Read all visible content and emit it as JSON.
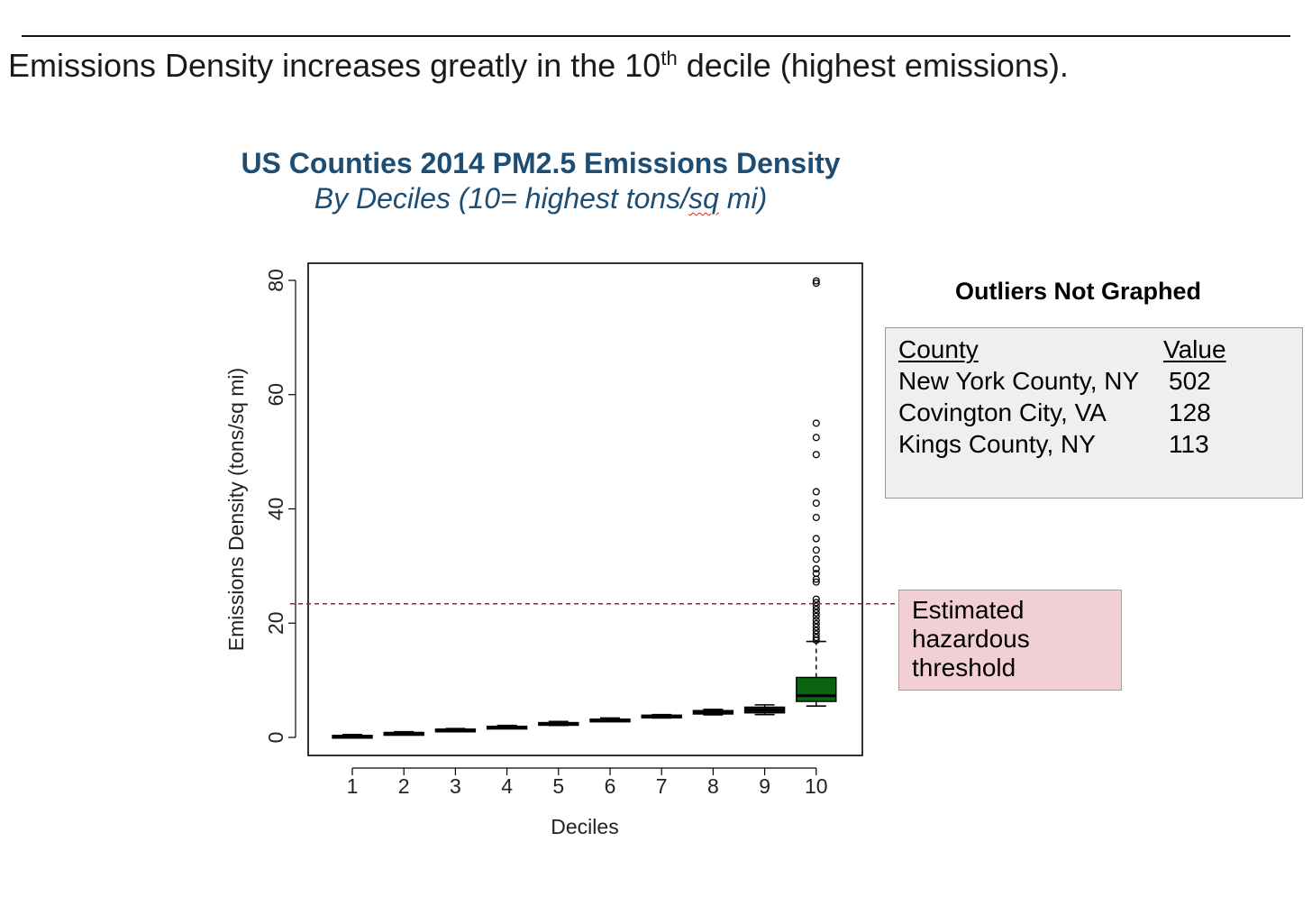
{
  "headline": {
    "text_before": "Emissions Density increases greatly in the 10",
    "superscript": "th",
    "text_after": " decile (highest emissions)."
  },
  "chart_data": {
    "type": "box",
    "title": "US Counties 2014 PM2.5 Emissions Density",
    "subtitle_prefix": "By Deciles (10= highest tons/",
    "subtitle_marked": "sq",
    "subtitle_suffix": " mi)",
    "xlabel": "Deciles",
    "ylabel": "Emissions Density (tons/sq mi)",
    "categories": [
      "1",
      "2",
      "3",
      "4",
      "5",
      "6",
      "7",
      "8",
      "9",
      "10"
    ],
    "yticks": [
      0,
      20,
      40,
      60,
      80
    ],
    "ylim": [
      -3,
      80
    ],
    "boxes": [
      {
        "min": 0.0,
        "q1": 0.05,
        "median": 0.2,
        "q3": 0.35,
        "max": 0.5
      },
      {
        "min": 0.5,
        "q1": 0.6,
        "median": 0.75,
        "q3": 0.85,
        "max": 1.0
      },
      {
        "min": 1.0,
        "q1": 1.15,
        "median": 1.3,
        "q3": 1.45,
        "max": 1.55
      },
      {
        "min": 1.55,
        "q1": 1.65,
        "median": 1.8,
        "q3": 1.95,
        "max": 2.1
      },
      {
        "min": 2.1,
        "q1": 2.2,
        "median": 2.4,
        "q3": 2.6,
        "max": 2.8
      },
      {
        "min": 2.8,
        "q1": 2.9,
        "median": 3.05,
        "q3": 3.2,
        "max": 3.4
      },
      {
        "min": 3.4,
        "q1": 3.5,
        "median": 3.7,
        "q3": 3.9,
        "max": 4.0
      },
      {
        "min": 3.95,
        "q1": 4.1,
        "median": 4.4,
        "q3": 4.7,
        "max": 4.9
      },
      {
        "min": 4.0,
        "q1": 4.3,
        "median": 4.8,
        "q3": 5.3,
        "max": 5.7
      },
      {
        "min": 5.5,
        "q1": 6.3,
        "median": 7.3,
        "q3": 10.5,
        "max": 16.8
      }
    ],
    "outliers_decile10": [
      79.5,
      79.9,
      55.0,
      52.5,
      49.5,
      43.0,
      41.0,
      38.5,
      34.8,
      32.8,
      31.2,
      29.5,
      28.7,
      27.7,
      27.2,
      24.2,
      23.6,
      23.0,
      22.4,
      21.8,
      21.2,
      20.5,
      19.9,
      19.3,
      18.7,
      18.1,
      17.5,
      17.0
    ],
    "threshold": 23.4,
    "colors": {
      "decile10_box": "#0a6410",
      "threshold_line": "#8b2a2a",
      "title": "#1e4d74"
    }
  },
  "outliers_panel": {
    "heading": "Outliers Not Graphed",
    "header_county": "County",
    "header_value": "Value",
    "rows": [
      {
        "county": "New York County, NY",
        "value": "502"
      },
      {
        "county": "Covington City, VA",
        "value": "128"
      },
      {
        "county": "Kings County, NY",
        "value": "113"
      }
    ]
  },
  "threshold_label": {
    "line1": "Estimated",
    "line2": "hazardous",
    "line3": "threshold"
  }
}
